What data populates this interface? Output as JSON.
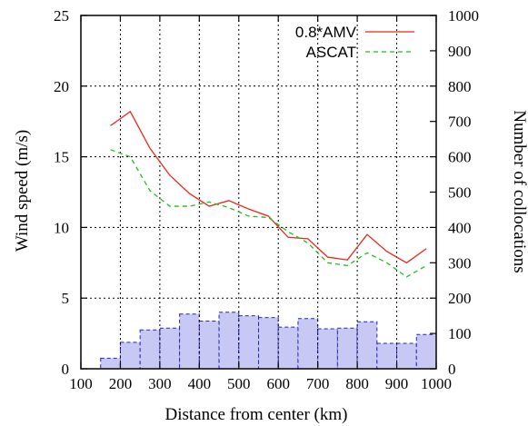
{
  "chart_data": {
    "type": "line",
    "title": "",
    "xlabel": "Distance from center (km)",
    "ylabel": "Wind speed (m/s)",
    "y2label": "Number of collocations",
    "xlim": [
      100,
      1000
    ],
    "ylim": [
      0,
      25
    ],
    "y2lim": [
      0,
      1000
    ],
    "grid": true,
    "legend_position": "top-right",
    "x_ticks": [
      "100",
      "200",
      "300",
      "400",
      "500",
      "600",
      "700",
      "800",
      "900",
      "1000"
    ],
    "y_ticks": [
      "0",
      "5",
      "10",
      "15",
      "20",
      "25"
    ],
    "y2_ticks": [
      "0",
      "100",
      "200",
      "300",
      "400",
      "500",
      "600",
      "700",
      "800",
      "900",
      "1000"
    ],
    "series": [
      {
        "name": "0.8*AMV",
        "color": "#e8281e",
        "dash": "solid",
        "x": [
          175,
          225,
          275,
          325,
          375,
          425,
          475,
          525,
          575,
          625,
          675,
          725,
          775,
          825,
          875,
          925,
          975
        ],
        "values": [
          17.2,
          18.2,
          15.6,
          13.7,
          12.4,
          11.5,
          11.9,
          11.3,
          10.8,
          9.3,
          9.2,
          7.9,
          7.7,
          9.5,
          8.3,
          7.5,
          8.5
        ]
      },
      {
        "name": "ASCAT",
        "color": "#1fbf1f",
        "dash": "5,4",
        "x": [
          175,
          225,
          275,
          325,
          375,
          425,
          475,
          525,
          575,
          625,
          675,
          725,
          775,
          825,
          875,
          925,
          975
        ],
        "values": [
          15.5,
          15.0,
          12.6,
          11.5,
          11.5,
          11.8,
          11.4,
          10.8,
          10.7,
          9.7,
          8.9,
          7.5,
          7.3,
          8.2,
          7.5,
          6.5,
          7.3
        ]
      }
    ],
    "bars": {
      "axis": "right",
      "fill": "#c8c8f5",
      "edge": "#2222c8",
      "x_start": [
        150,
        200,
        250,
        300,
        350,
        400,
        450,
        500,
        550,
        600,
        650,
        700,
        750,
        800,
        850,
        900,
        950
      ],
      "x_end": [
        200,
        250,
        300,
        350,
        400,
        450,
        500,
        550,
        600,
        650,
        700,
        750,
        800,
        850,
        900,
        950,
        1000
      ],
      "values": [
        30,
        75,
        110,
        115,
        155,
        135,
        160,
        150,
        145,
        118,
        142,
        113,
        115,
        133,
        72,
        72,
        97
      ]
    }
  }
}
